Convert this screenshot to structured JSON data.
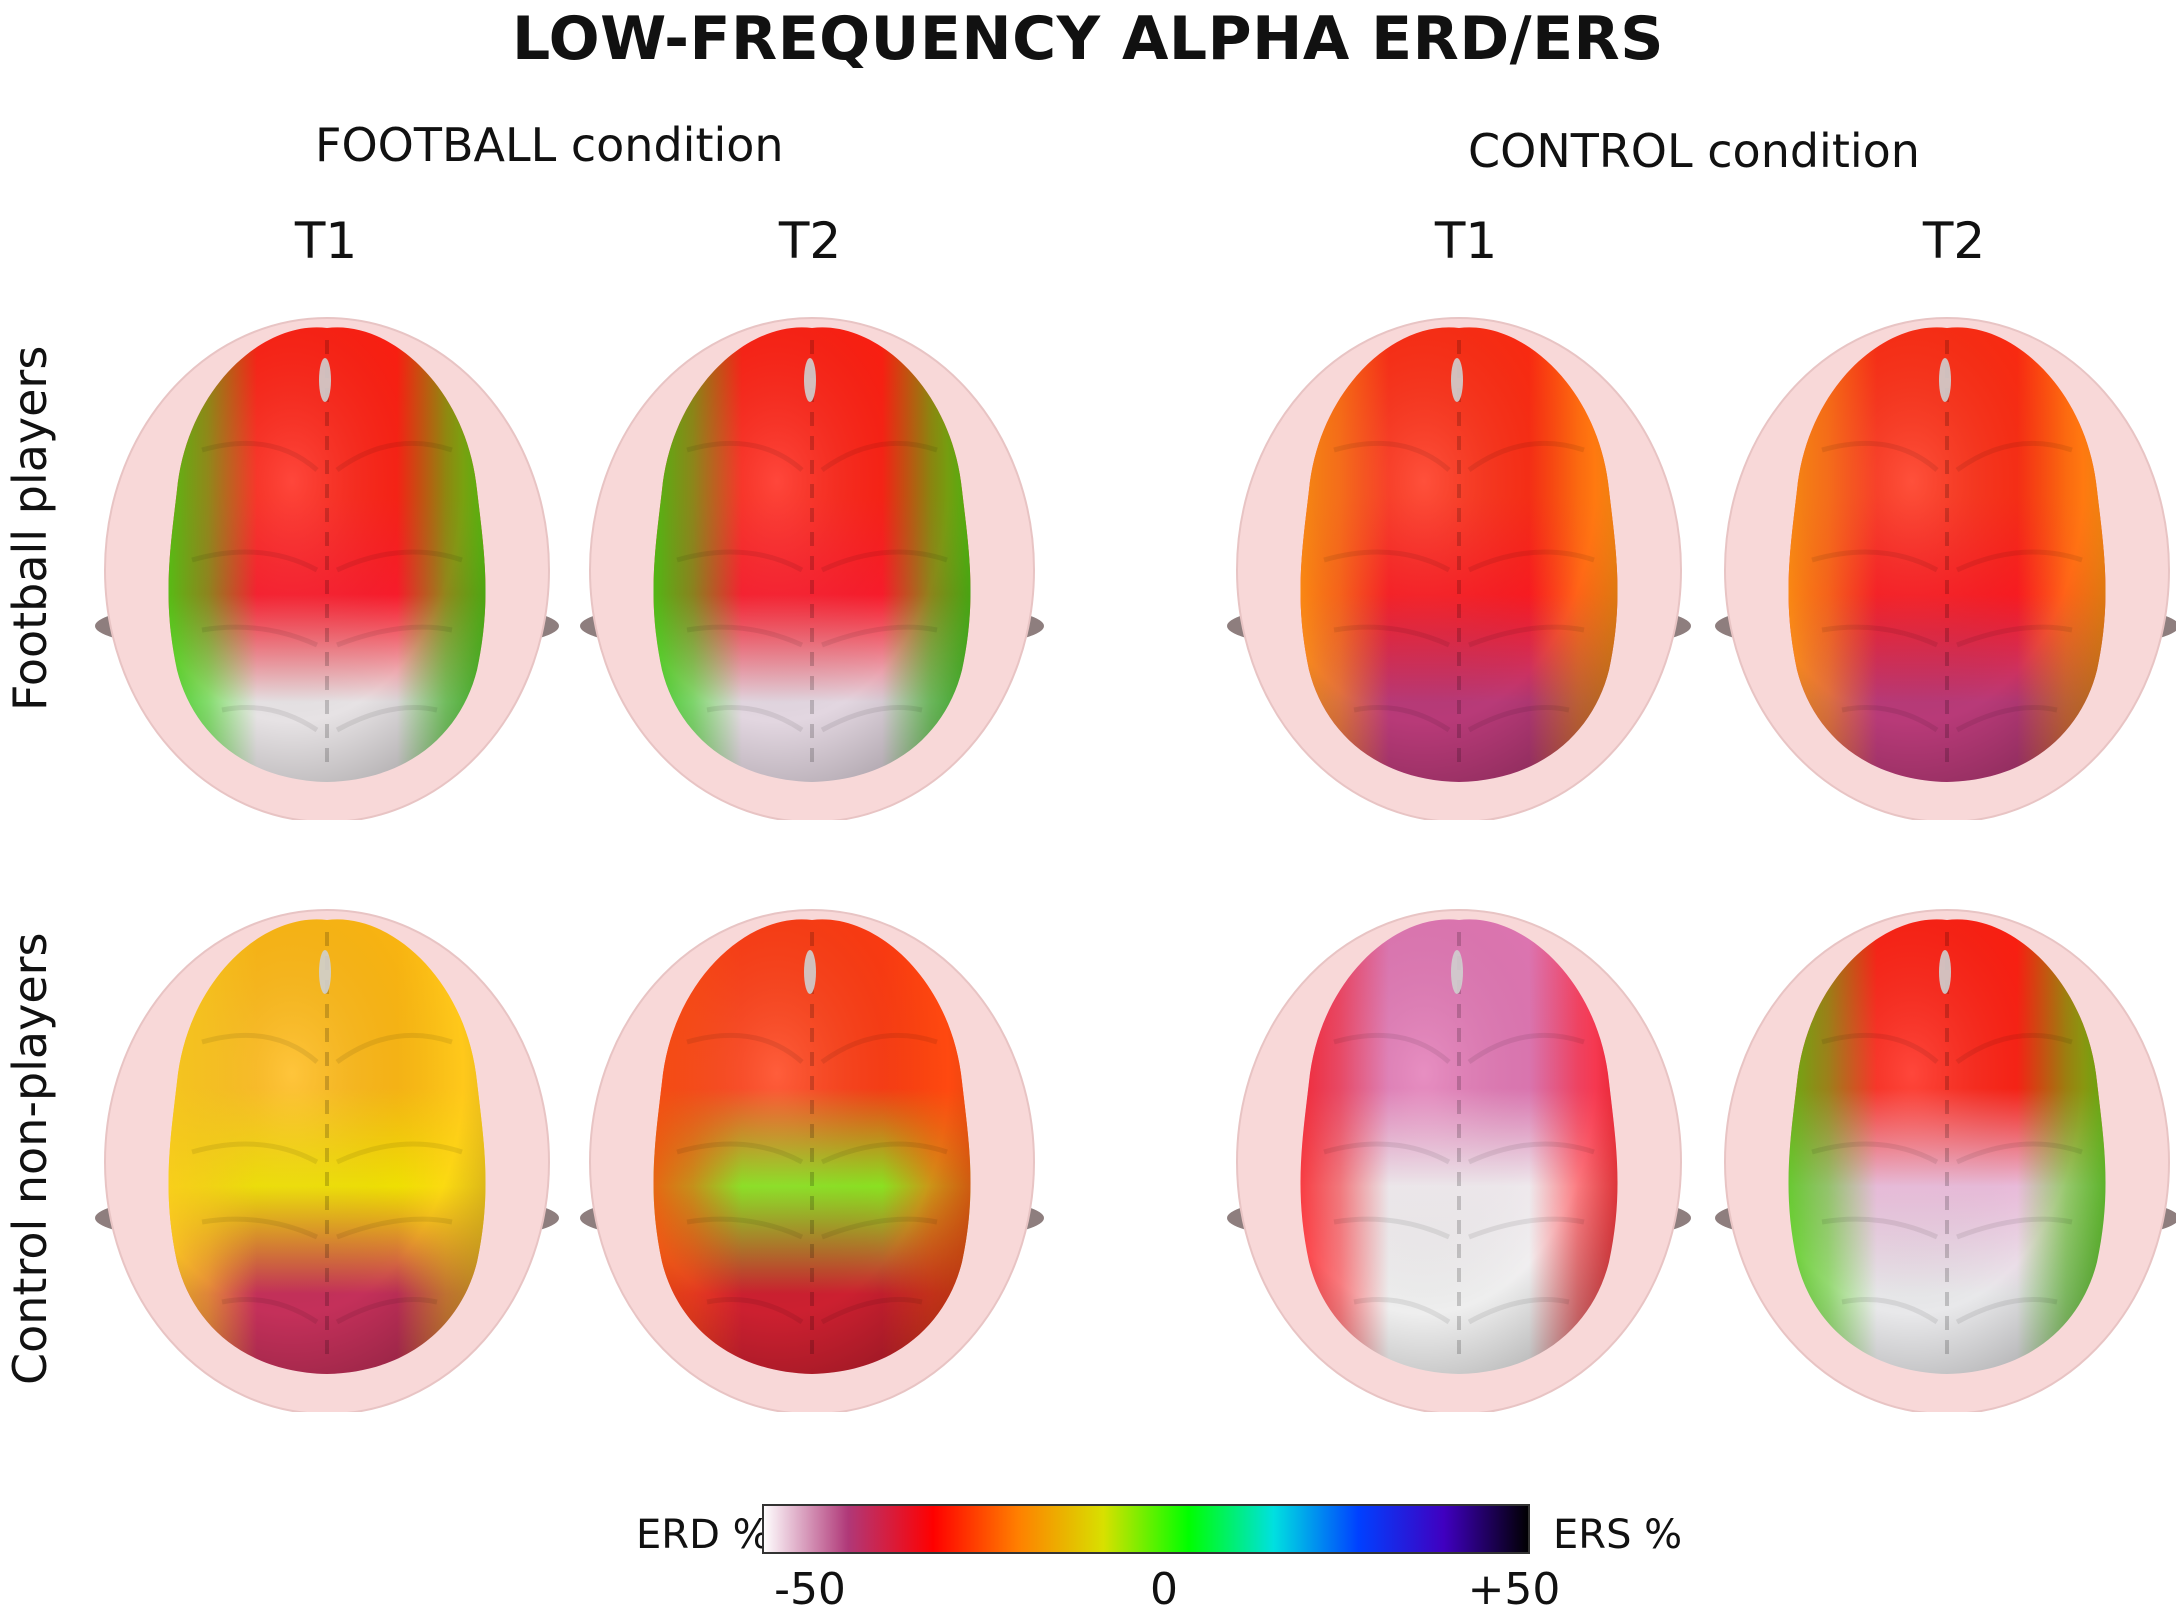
{
  "title": "LOW-FREQUENCY ALPHA ERD/ERS",
  "conditions": [
    {
      "label": "FOOTBALL condition",
      "times": [
        "T1",
        "T2"
      ]
    },
    {
      "label": "CONTROL condition",
      "times": [
        "T1",
        "T2"
      ]
    }
  ],
  "groups": [
    "Football players",
    "Control non-players"
  ],
  "panels": [
    {
      "group": "Football players",
      "condition": "FOOTBALL condition",
      "time": "T1",
      "front": "#ff1e10",
      "back": "#e6e2e4",
      "side": "#38e010",
      "mid": "#ff1a2a"
    },
    {
      "group": "Football players",
      "condition": "FOOTBALL condition",
      "time": "T2",
      "front": "#ff1e10",
      "back": "#e2d6e0",
      "side": "#30dc10",
      "mid": "#ff1a2a"
    },
    {
      "group": "Football players",
      "condition": "CONTROL condition",
      "time": "T1",
      "front": "#ff2a10",
      "back": "#b83a78",
      "side": "#ffa010",
      "mid": "#ff1a20"
    },
    {
      "group": "Football players",
      "condition": "CONTROL condition",
      "time": "T2",
      "front": "#ff2a10",
      "back": "#b83a78",
      "side": "#ffa010",
      "mid": "#ff1a20"
    },
    {
      "group": "Control non-players",
      "condition": "FOOTBALL condition",
      "time": "T1",
      "front": "#ffb810",
      "back": "#c4305a",
      "side": "#ffd020",
      "mid": "#f6e600"
    },
    {
      "group": "Control non-players",
      "condition": "FOOTBALL condition",
      "time": "T2",
      "front": "#ff3a10",
      "back": "#cc2030",
      "side": "#ff5010",
      "mid": "#8ee820"
    },
    {
      "group": "Control non-players",
      "condition": "CONTROL condition",
      "time": "T1",
      "front": "#e276b4",
      "back": "#eeeeee",
      "side": "#ff1a20",
      "mid": "#f6f0f4"
    },
    {
      "group": "Control non-players",
      "condition": "CONTROL condition",
      "time": "T2",
      "front": "#ff1e10",
      "back": "#e8e8ea",
      "side": "#50d010",
      "mid": "#f0c0e0"
    }
  ],
  "colorbar": {
    "left_label": "ERD %",
    "right_label": "ERS %",
    "ticks": [
      "-50",
      "0",
      "+50"
    ],
    "colors": [
      "#ffffff",
      "#b03878",
      "#ff0000",
      "#ff8000",
      "#d8e000",
      "#00ff00",
      "#00e0e0",
      "#0040ff",
      "#4000c0",
      "#000000"
    ]
  }
}
